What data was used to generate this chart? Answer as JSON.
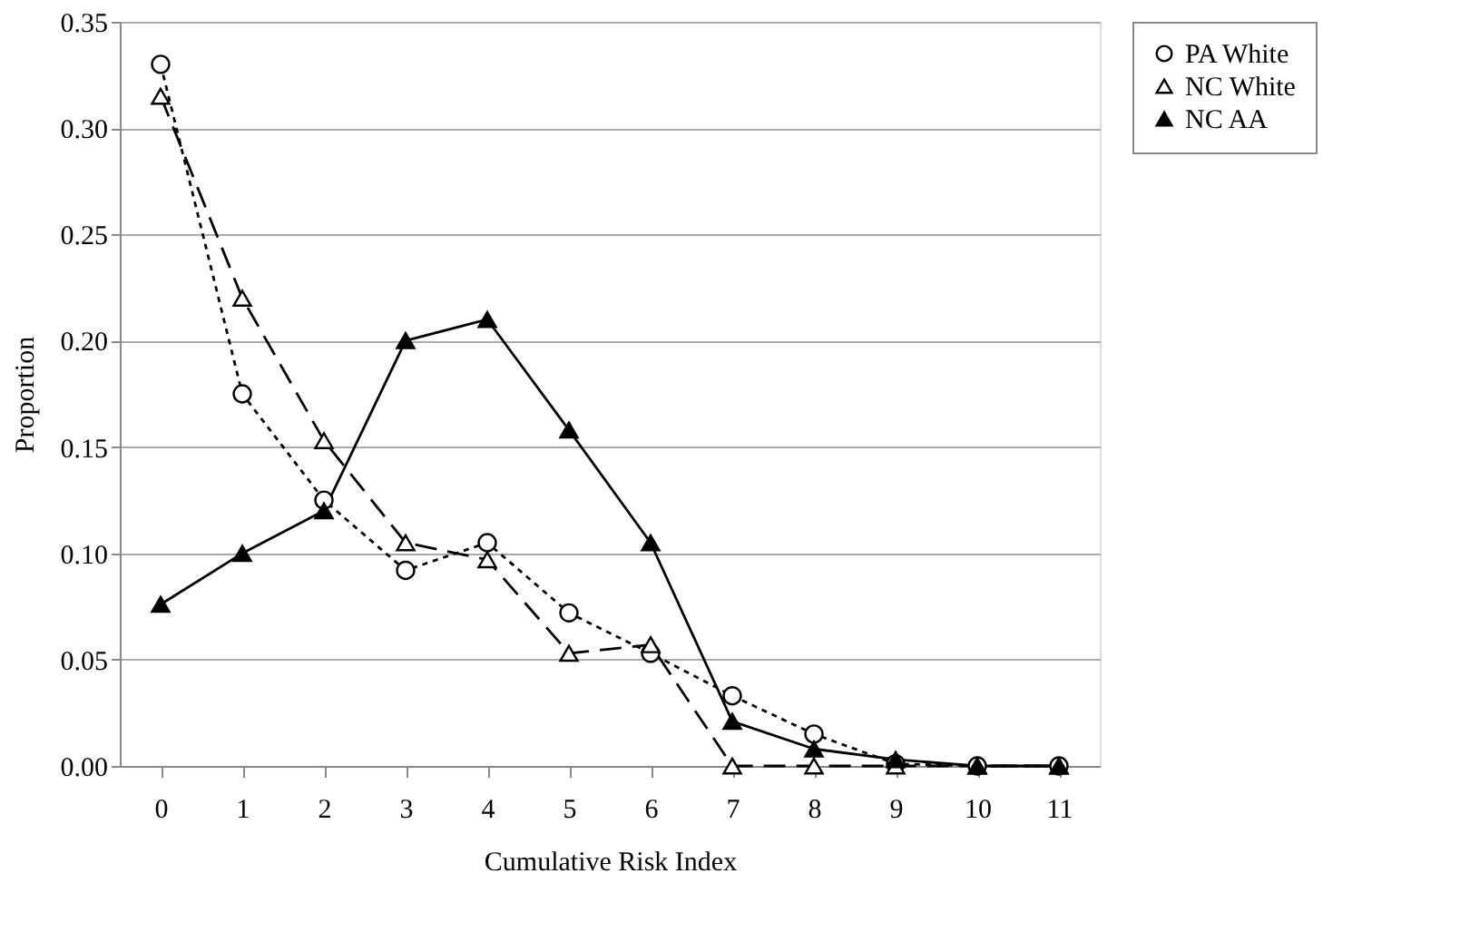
{
  "chart_data": {
    "type": "line",
    "xlabel": "Cumulative Risk Index",
    "ylabel": "Proportion",
    "categories": [
      "0",
      "1",
      "2",
      "3",
      "4",
      "5",
      "6",
      "7",
      "8",
      "9",
      "10",
      "11"
    ],
    "series": [
      {
        "name": "PA White",
        "color": "#000000",
        "marker": "circle",
        "line_style": "dotted",
        "values": [
          0.33,
          0.175,
          0.125,
          0.092,
          0.105,
          0.072,
          0.053,
          0.033,
          0.015,
          0.001,
          0,
          0
        ]
      },
      {
        "name": "NC White",
        "color": "#000000",
        "marker": "triangle",
        "line_style": "dashed",
        "values": [
          0.315,
          0.22,
          0.153,
          0.105,
          0.097,
          0.053,
          0.057,
          0,
          0,
          0,
          0,
          0
        ]
      },
      {
        "name": "NC AA",
        "color": "#000000",
        "marker": "triangle",
        "line_style": "solid",
        "values": [
          0.076,
          0.1,
          0.12,
          0.2,
          0.21,
          0.158,
          0.105,
          0.021,
          0.008,
          0.003,
          0,
          0
        ]
      }
    ],
    "ylim": [
      0,
      0.35
    ],
    "yticks": [
      {
        "value": 0,
        "label": "0.00"
      },
      0.05,
      {
        "value": 0.1,
        "label": "0.10"
      },
      0.15,
      {
        "value": 0.2,
        "label": "0.20"
      },
      0.25,
      {
        "value": 0.3,
        "label": "0.30"
      },
      0.35
    ],
    "grid": "y",
    "legend": "right"
  }
}
